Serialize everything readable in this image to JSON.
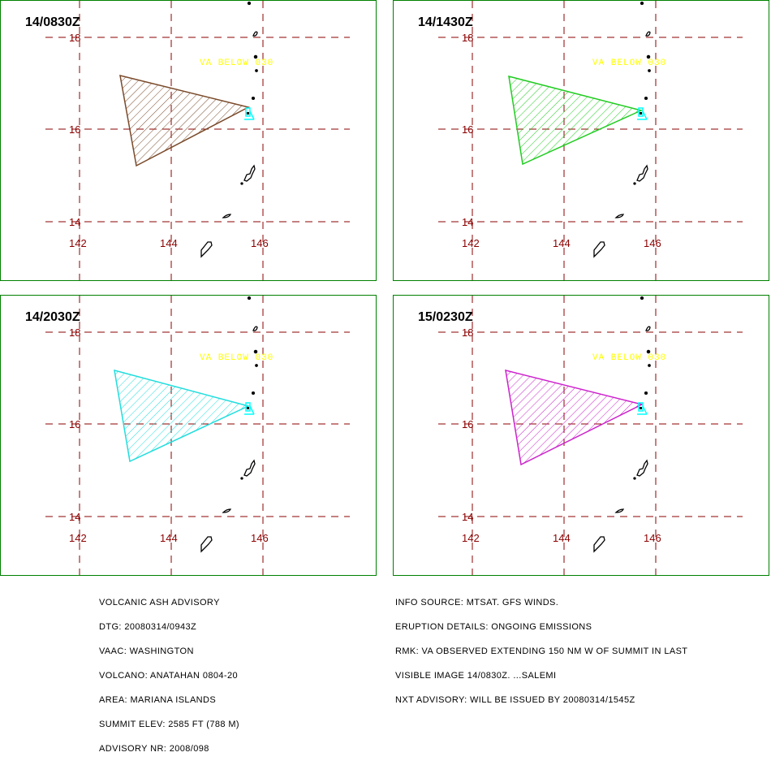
{
  "panels": [
    {
      "time": "14/0830Z",
      "color": "#7a4a2a"
    },
    {
      "time": "14/1430Z",
      "color": "#22cc22"
    },
    {
      "time": "14/2030Z",
      "color": "#22dddd"
    },
    {
      "time": "15/0230Z",
      "color": "#cc22cc"
    }
  ],
  "map": {
    "lat_labels": [
      "18",
      "16",
      "14"
    ],
    "lon_labels": [
      "142",
      "144",
      "146"
    ],
    "annotation": "VA BELOW 030",
    "grid_color": "#8b0000",
    "annotation_color": "#ffff00",
    "summit_color": "#00ffff"
  },
  "advisory": {
    "title": "VOLCANIC ASH ADVISORY",
    "dtg": "DTG: 20080314/0943Z",
    "vaac": "VAAC: WASHINGTON",
    "volcano": "VOLCANO: ANATAHAN 0804-20",
    "area": "AREA: MARIANA ISLANDS",
    "summit_elev": "SUMMIT ELEV: 2585 FT (788 M)",
    "advisory_nr": "ADVISORY NR: 2008/098"
  },
  "remarks": {
    "info_source": "INFO SOURCE: MTSAT. GFS WINDS.",
    "eruption_details": "ERUPTION DETAILS: ONGOING EMISSIONS",
    "rmk": "RMK: VA OBSERVED EXTENDING 150 NM W OF SUMMIT IN LAST",
    "rmk2": "VISIBLE IMAGE 14/0830Z. ...SALEMI",
    "nxt_advisory": "NXT ADVISORY: WILL BE ISSUED BY 20080314/1545Z"
  }
}
